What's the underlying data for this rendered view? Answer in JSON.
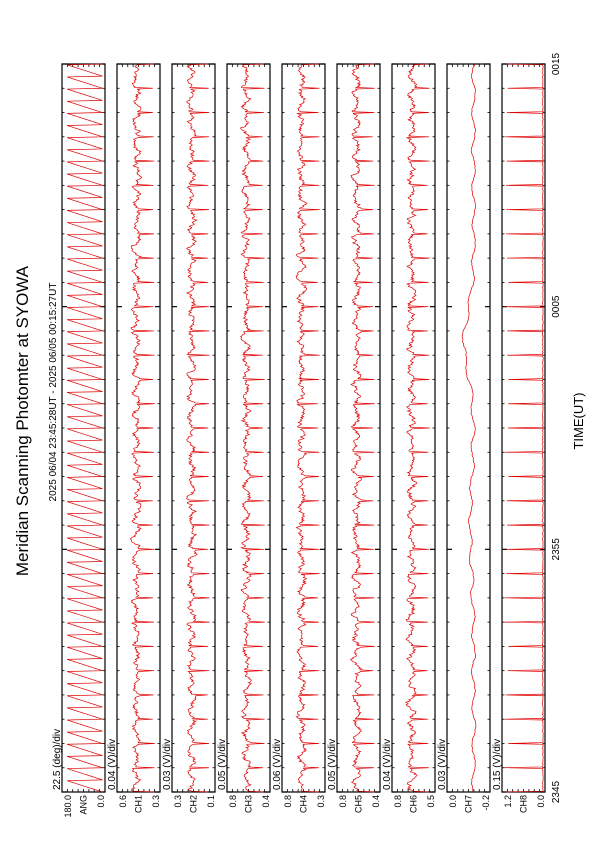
{
  "chart_data": {
    "type": "line",
    "title": "Meridian Scanning Photomter at SYOWA",
    "subtitle": "2025 06/04 23:45:28UT - 2025 06/05 00:15:27UT",
    "xlabel": "TIME(UT)",
    "x_ticks": [
      "2345",
      "2355",
      "0005",
      "0015"
    ],
    "x_range_minutes": [
      0,
      30
    ],
    "grid": false,
    "line_color": "#e00000",
    "panels": [
      {
        "scale": "22.5 (deg)/div",
        "top": "180.0",
        "bottom": "0.0",
        "channel": "ANG",
        "kind": "saw",
        "period_min": 0.5
      },
      {
        "scale": "0.04 (V)/div",
        "top": "0.6",
        "bottom": "0.3",
        "channel": "CH1",
        "kind": "noise",
        "period_min": 1.0
      },
      {
        "scale": "0.03 (V)/div",
        "top": "0.3",
        "bottom": "0.1",
        "channel": "CH2",
        "kind": "noise",
        "period_min": 1.0
      },
      {
        "scale": "0.05 (V)/div",
        "top": "0.8",
        "bottom": "0.4",
        "channel": "CH3",
        "kind": "noise",
        "period_min": 1.0
      },
      {
        "scale": "0.06 (V)/div",
        "top": "0.8",
        "bottom": "0.3",
        "channel": "CH4",
        "kind": "noise",
        "period_min": 1.0
      },
      {
        "scale": "0.05 (V)/div",
        "top": "0.8",
        "bottom": "0.4",
        "channel": "CH5",
        "kind": "noise",
        "period_min": 1.0
      },
      {
        "scale": "0.04 (V)/div",
        "top": "0.8",
        "bottom": "0.5",
        "channel": "CH6",
        "kind": "noise",
        "period_min": 1.0
      },
      {
        "scale": "0.03 (V)/div",
        "top": "0.0",
        "bottom": "-0.2",
        "channel": "CH7",
        "kind": "smooth",
        "period_min": 1.0
      },
      {
        "scale": "0.15 (V)/div",
        "top": "1.2",
        "bottom": "0.0",
        "channel": "CH8",
        "kind": "spikes",
        "period_min": 1.0
      }
    ]
  }
}
